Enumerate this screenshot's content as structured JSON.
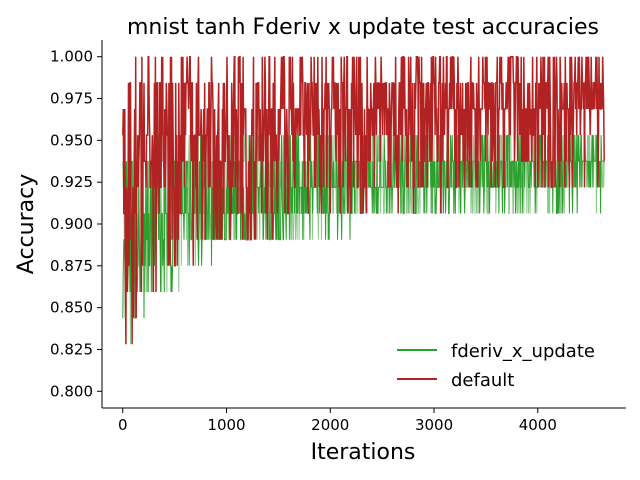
{
  "chart_data": {
    "type": "line",
    "title": "mnist tanh Fderiv x update test accuracies",
    "xlabel": "Iterations",
    "ylabel": "Accuracy",
    "xlim": [
      -200,
      4850
    ],
    "ylim": [
      0.79,
      1.01
    ],
    "xticks": [
      0,
      1000,
      2000,
      3000,
      4000
    ],
    "xtick_labels": [
      "0",
      "1000",
      "2000",
      "3000",
      "4000"
    ],
    "yticks": [
      0.8,
      0.825,
      0.85,
      0.875,
      0.9,
      0.925,
      0.95,
      0.975,
      1.0
    ],
    "ytick_labels": [
      "0.800",
      "0.825",
      "0.850",
      "0.875",
      "0.900",
      "0.925",
      "0.950",
      "0.975",
      "1.000"
    ],
    "grid": false,
    "legend_position": "lower-right",
    "series": [
      {
        "name": "fderiv_x_update",
        "color": "#2ca02c",
        "band_color": "#8cc98c",
        "x_range": [
          0,
          4640
        ],
        "description_points": {
          "x": [
            0,
            50,
            100,
            200,
            400,
            600,
            1000,
            1500,
            2000,
            2500,
            3000,
            3500,
            4000,
            4640
          ],
          "low": [
            0.82,
            0.825,
            0.83,
            0.84,
            0.855,
            0.87,
            0.885,
            0.89,
            0.895,
            0.9,
            0.9,
            0.905,
            0.905,
            0.91
          ],
          "mid": [
            0.875,
            0.88,
            0.885,
            0.89,
            0.9,
            0.905,
            0.915,
            0.92,
            0.925,
            0.925,
            0.93,
            0.93,
            0.935,
            0.935
          ],
          "high": [
            0.94,
            0.945,
            0.95,
            0.95,
            0.95,
            0.95,
            0.95,
            0.95,
            0.95,
            0.95,
            0.95,
            0.95,
            0.95,
            0.95
          ]
        }
      },
      {
        "name": "default",
        "color": "#b22222",
        "x_range": [
          0,
          4640
        ],
        "description_points": {
          "x": [
            0,
            50,
            100,
            200,
            400,
            600,
            1000,
            1500,
            2000,
            2500,
            3000,
            3500,
            4000,
            4640
          ],
          "low": [
            0.83,
            0.815,
            0.8,
            0.84,
            0.865,
            0.875,
            0.885,
            0.89,
            0.9,
            0.905,
            0.91,
            0.915,
            0.92,
            0.925
          ],
          "mid": [
            0.9,
            0.91,
            0.92,
            0.935,
            0.945,
            0.95,
            0.955,
            0.96,
            0.965,
            0.965,
            0.97,
            0.97,
            0.97,
            0.975
          ],
          "high": [
            0.97,
            0.985,
            0.99,
            1.0,
            1.0,
            1.0,
            1.0,
            1.0,
            1.0,
            1.0,
            1.0,
            1.0,
            1.0,
            1.0
          ]
        }
      }
    ]
  }
}
